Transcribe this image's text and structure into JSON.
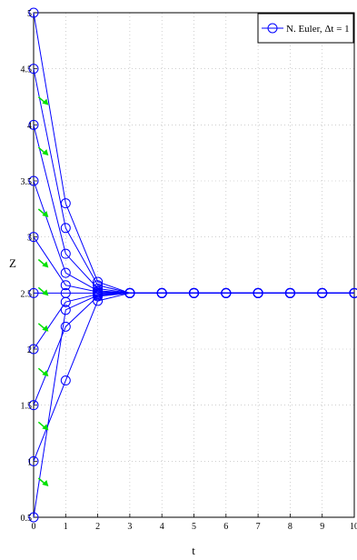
{
  "chart_data": {
    "type": "line",
    "title": "",
    "xlabel": "t",
    "ylabel": "Z",
    "xlim": [
      0,
      10
    ],
    "ylim": [
      0.5,
      5
    ],
    "xticks": [
      "0",
      "1",
      "2",
      "3",
      "4",
      "5",
      "6",
      "7",
      "8",
      "9",
      "10"
    ],
    "yticks": [
      "0.5",
      "1",
      "1.5",
      "2",
      "2.5",
      "3",
      "3.5",
      "4",
      "4.5",
      "5"
    ],
    "grid": true,
    "legend": {
      "placement": "top-right",
      "entries": [
        "N. Euler, Δt = 1"
      ]
    },
    "colors": {
      "series": "#0000ff",
      "arrows": "#00e000",
      "grid": "#b0b0b0"
    },
    "x": [
      0,
      1,
      2,
      3,
      4,
      5,
      6,
      7,
      8,
      9,
      10
    ],
    "series": [
      {
        "values": [
          5.0,
          3.3,
          2.6,
          2.5,
          2.5,
          2.5,
          2.5,
          2.5,
          2.5,
          2.5,
          2.5
        ]
      },
      {
        "values": [
          4.5,
          3.08,
          2.57,
          2.5,
          2.5,
          2.5,
          2.5,
          2.5,
          2.5,
          2.5,
          2.5
        ]
      },
      {
        "values": [
          4.0,
          2.85,
          2.54,
          2.5,
          2.5,
          2.5,
          2.5,
          2.5,
          2.5,
          2.5,
          2.5
        ]
      },
      {
        "values": [
          3.5,
          2.68,
          2.52,
          2.5,
          2.5,
          2.5,
          2.5,
          2.5,
          2.5,
          2.5,
          2.5
        ]
      },
      {
        "values": [
          3.0,
          2.57,
          2.51,
          2.5,
          2.5,
          2.5,
          2.5,
          2.5,
          2.5,
          2.5,
          2.5
        ]
      },
      {
        "values": [
          2.5,
          2.5,
          2.5,
          2.5,
          2.5,
          2.5,
          2.5,
          2.5,
          2.5,
          2.5,
          2.5
        ]
      },
      {
        "values": [
          2.0,
          2.42,
          2.49,
          2.5,
          2.5,
          2.5,
          2.5,
          2.5,
          2.5,
          2.5,
          2.5
        ]
      },
      {
        "values": [
          1.5,
          2.2,
          2.47,
          2.5,
          2.5,
          2.5,
          2.5,
          2.5,
          2.5,
          2.5,
          2.5
        ]
      },
      {
        "values": [
          1.0,
          1.72,
          2.43,
          2.5,
          2.5,
          2.5,
          2.5,
          2.5,
          2.5,
          2.5,
          2.5
        ]
      },
      {
        "values": [
          0.5,
          2.35,
          2.48,
          2.5,
          2.5,
          2.5,
          2.5,
          2.5,
          2.5,
          2.5,
          2.5
        ]
      }
    ],
    "direction_arrows": [
      {
        "x": 0.35,
        "y": 4.2
      },
      {
        "x": 0.35,
        "y": 3.75
      },
      {
        "x": 0.35,
        "y": 3.2
      },
      {
        "x": 0.35,
        "y": 2.75
      },
      {
        "x": 0.35,
        "y": 2.5
      },
      {
        "x": 0.35,
        "y": 2.18
      },
      {
        "x": 0.35,
        "y": 1.78
      },
      {
        "x": 0.35,
        "y": 1.3
      },
      {
        "x": 0.35,
        "y": 0.8
      }
    ]
  }
}
